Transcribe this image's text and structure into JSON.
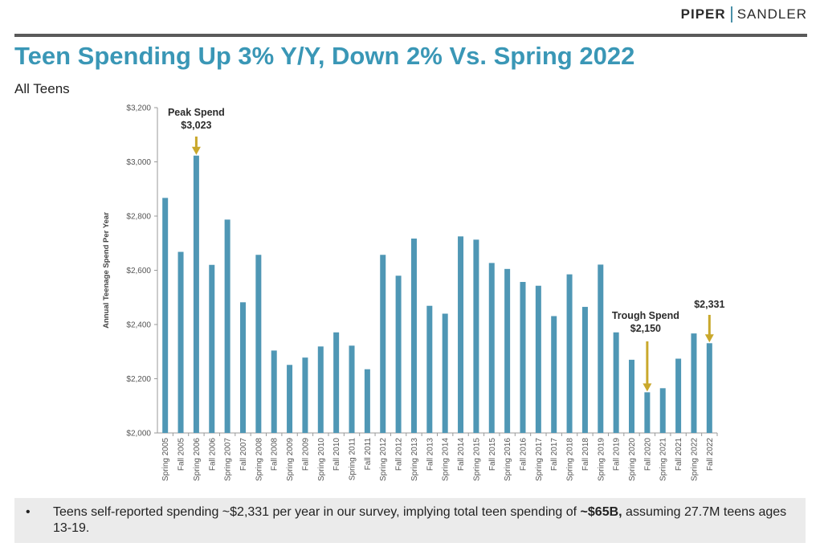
{
  "brand": {
    "left": "PIPER",
    "right": "SANDLER"
  },
  "page": {
    "title": "Teen Spending Up 3% Y/Y, Down 2% Vs. Spring 2022",
    "subtitle": "All Teens"
  },
  "chart_data": {
    "type": "bar",
    "title": "",
    "ylabel": "Annual Teenage Spend Per Year",
    "xlabel": "",
    "ylim": [
      2000,
      3200
    ],
    "yticks": [
      2000,
      2200,
      2400,
      2600,
      2800,
      3000,
      3200
    ],
    "ytick_labels": [
      "$2,000",
      "$2,200",
      "$2,400",
      "$2,600",
      "$2,800",
      "$3,000",
      "$3,200"
    ],
    "categories": [
      "Spring 2005",
      "Fall 2005",
      "Spring 2006",
      "Fall 2006",
      "Spring 2007",
      "Fall 2007",
      "Spring 2008",
      "Fall 2008",
      "Spring 2009",
      "Fall 2009",
      "Spring 2010",
      "Fall 2010",
      "Spring 2011",
      "Fall 2011",
      "Spring 2012",
      "Fall 2012",
      "Spring 2013",
      "Fall 2013",
      "Spring 2014",
      "Fall 2014",
      "Spring 2015",
      "Fall 2015",
      "Spring 2016",
      "Fall 2016",
      "Spring 2017",
      "Fall 2017",
      "Spring 2018",
      "Fall 2018",
      "Spring 2019",
      "Fall 2019",
      "Spring 2020",
      "Fall 2020",
      "Spring 2021",
      "Fall 2021",
      "Spring 2022",
      "Fall 2022"
    ],
    "values": [
      2867,
      2668,
      3023,
      2620,
      2787,
      2482,
      2657,
      2304,
      2251,
      2278,
      2319,
      2371,
      2322,
      2235,
      2657,
      2580,
      2717,
      2469,
      2440,
      2725,
      2713,
      2627,
      2605,
      2557,
      2543,
      2431,
      2585,
      2465,
      2621,
      2371,
      2270,
      2150,
      2165,
      2274,
      2367,
      2331
    ],
    "bar_color": "#4f97b5",
    "grid": false,
    "annotations": [
      {
        "name": "peak",
        "label_lines": [
          "Peak Spend",
          "$3,023"
        ],
        "index": 2,
        "color": "#c9a82c"
      },
      {
        "name": "trough",
        "label_lines": [
          "Trough Spend",
          "$2,150"
        ],
        "index": 31,
        "color": "#c9a82c"
      },
      {
        "name": "latest",
        "label_lines": [
          "$2,331"
        ],
        "index": 35,
        "color": "#c9a82c"
      }
    ]
  },
  "footer": {
    "bullet": "•",
    "text_before": "Teens self-reported spending ~$2,331 per year in our survey, implying total teen spending of ",
    "text_bold": "~$65B,",
    "text_after": " assuming 27.7M teens ages 13-19."
  }
}
